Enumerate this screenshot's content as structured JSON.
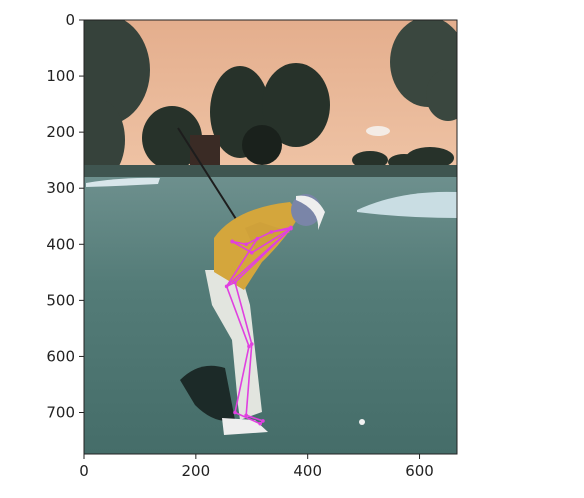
{
  "chart_data": {
    "type": "image",
    "xlim": [
      0,
      667
    ],
    "ylim": [
      774,
      0
    ],
    "x_ticks": [
      {
        "value": 0,
        "label": "0"
      },
      {
        "value": 200,
        "label": "200"
      },
      {
        "value": 400,
        "label": "400"
      },
      {
        "value": 600,
        "label": "600"
      }
    ],
    "y_ticks": [
      {
        "value": 0,
        "label": "0"
      },
      {
        "value": 100,
        "label": "100"
      },
      {
        "value": 200,
        "label": "200"
      },
      {
        "value": 300,
        "label": "300"
      },
      {
        "value": 400,
        "label": "400"
      },
      {
        "value": 500,
        "label": "500"
      },
      {
        "value": 600,
        "label": "600"
      },
      {
        "value": 700,
        "label": "700"
      }
    ],
    "grid": false,
    "skeleton_color": "#e040e0",
    "keypoints": [
      {
        "name": "head",
        "x": 370,
        "y": 370
      },
      {
        "name": "neck",
        "x": 335,
        "y": 378
      },
      {
        "name": "right_shoulder",
        "x": 310,
        "y": 390
      },
      {
        "name": "left_shoulder",
        "x": 370,
        "y": 372
      },
      {
        "name": "right_elbow",
        "x": 290,
        "y": 400
      },
      {
        "name": "left_elbow",
        "x": 300,
        "y": 415
      },
      {
        "name": "right_wrist",
        "x": 265,
        "y": 395
      },
      {
        "name": "left_wrist",
        "x": 265,
        "y": 395
      },
      {
        "name": "right_hip",
        "x": 255,
        "y": 475
      },
      {
        "name": "left_hip",
        "x": 270,
        "y": 468
      },
      {
        "name": "right_knee",
        "x": 295,
        "y": 582
      },
      {
        "name": "left_knee",
        "x": 300,
        "y": 578
      },
      {
        "name": "right_ankle",
        "x": 270,
        "y": 700
      },
      {
        "name": "left_ankle",
        "x": 290,
        "y": 705
      },
      {
        "name": "right_toe",
        "x": 315,
        "y": 720
      },
      {
        "name": "left_toe",
        "x": 320,
        "y": 715
      }
    ],
    "skeleton": [
      [
        "head",
        "neck"
      ],
      [
        "neck",
        "right_shoulder"
      ],
      [
        "neck",
        "left_shoulder"
      ],
      [
        "right_shoulder",
        "right_elbow"
      ],
      [
        "right_elbow",
        "right_wrist"
      ],
      [
        "left_shoulder",
        "left_elbow"
      ],
      [
        "left_elbow",
        "left_wrist"
      ],
      [
        "right_shoulder",
        "right_hip"
      ],
      [
        "left_shoulder",
        "right_hip"
      ],
      [
        "left_shoulder",
        "left_hip"
      ],
      [
        "right_hip",
        "left_hip"
      ],
      [
        "right_hip",
        "right_knee"
      ],
      [
        "left_hip",
        "left_knee"
      ],
      [
        "right_knee",
        "right_ankle"
      ],
      [
        "left_knee",
        "left_ankle"
      ],
      [
        "right_ankle",
        "right_toe"
      ],
      [
        "left_ankle",
        "left_toe"
      ],
      [
        "right_toe",
        "left_toe"
      ]
    ]
  }
}
